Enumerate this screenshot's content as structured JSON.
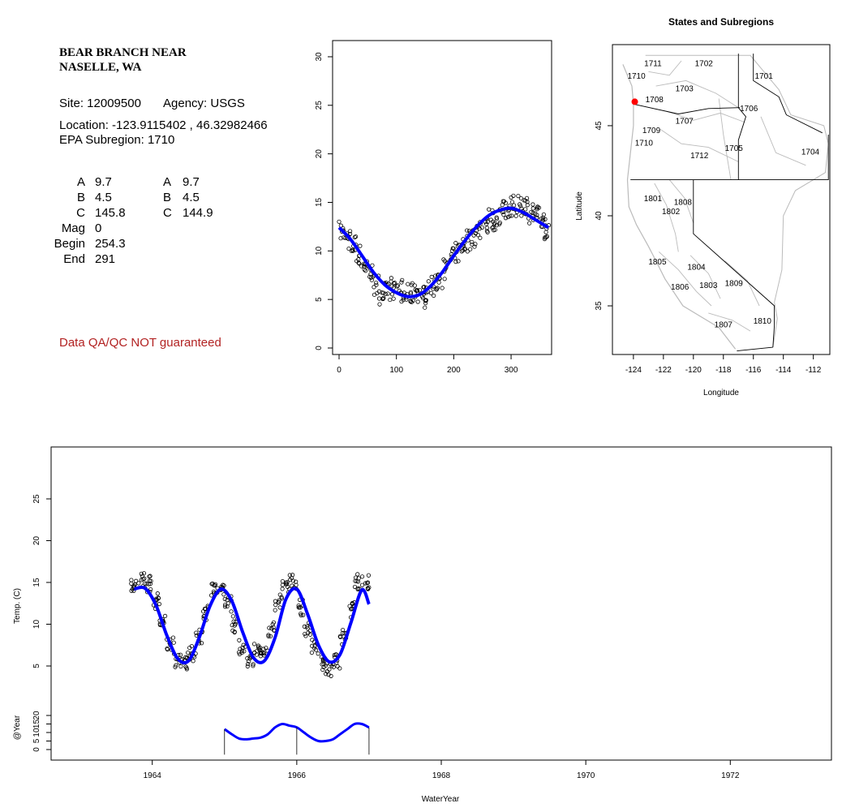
{
  "site": {
    "name_line1": "BEAR BRANCH NEAR",
    "name_line2": "NASELLE, WA",
    "site_text": "Site: 12009500",
    "agency_text": "Agency: USGS",
    "location_text": "Location: -123.9115402 , 46.32982466",
    "epa_text": "EPA Subregion: 1710",
    "qa_note": "Data QA/QC NOT guaranteed"
  },
  "params": {
    "rows": [
      {
        "label": "A",
        "v1": "9.7",
        "label2": "A",
        "v2": "9.7"
      },
      {
        "label": "B",
        "v1": "4.5",
        "label2": "B",
        "v2": "4.5"
      },
      {
        "label": "C",
        "v1": "145.8",
        "label2": "C",
        "v2": "144.9"
      },
      {
        "label": "Mag",
        "v1": "0",
        "label2": "",
        "v2": ""
      },
      {
        "label": "Begin",
        "v1": "254.3",
        "label2": "",
        "v2": ""
      },
      {
        "label": "End",
        "v1": "291",
        "label2": "",
        "v2": ""
      }
    ]
  },
  "colors": {
    "fit_line": "#0000ff",
    "points": "#000000",
    "site_marker": "#ff0000",
    "boundaries": "#bbbbbb",
    "qa_note": "#b22222"
  },
  "chart_data": [
    {
      "id": "doy",
      "type": "scatter",
      "title": "",
      "xlabel": "",
      "ylabel": "",
      "xlim": [
        0,
        365
      ],
      "ylim": [
        0,
        31
      ],
      "xticks": [
        0,
        100,
        200,
        300
      ],
      "yticks": [
        0,
        5,
        10,
        15,
        20,
        25,
        30
      ],
      "series": [
        {
          "kind": "points",
          "x": [
            5,
            15,
            25,
            35,
            45,
            55,
            65,
            75,
            85,
            95,
            105,
            115,
            125,
            135,
            145,
            155,
            165,
            175,
            185,
            195,
            205,
            215,
            225,
            235,
            245,
            255,
            265,
            275,
            285,
            295,
            305,
            315,
            325,
            335,
            345,
            355,
            362
          ],
          "y": [
            12.0,
            11.3,
            10.5,
            9.5,
            8.6,
            7.6,
            6.5,
            5.7,
            5.6,
            6.2,
            5.9,
            5.4,
            5.6,
            5.9,
            5.3,
            5.8,
            6.3,
            7.2,
            8.1,
            9.1,
            9.9,
            10.7,
            11.1,
            11.6,
            12.3,
            13.0,
            13.2,
            13.3,
            14.0,
            14.4,
            14.7,
            14.8,
            14.3,
            14.0,
            13.7,
            13.1,
            12.3
          ]
        },
        {
          "kind": "fit",
          "x": [
            0,
            20,
            40,
            60,
            80,
            100,
            120,
            140,
            160,
            180,
            200,
            220,
            240,
            260,
            280,
            300,
            320,
            340,
            365
          ],
          "y": [
            12.4,
            11.2,
            9.5,
            7.8,
            6.5,
            5.7,
            5.3,
            5.5,
            6.4,
            7.8,
            9.5,
            11.1,
            12.5,
            13.6,
            14.2,
            14.4,
            14.0,
            13.3,
            12.4
          ]
        }
      ]
    },
    {
      "id": "map",
      "type": "map",
      "title": "States and Subregions",
      "xlabel": "Longitude",
      "ylabel": "Latitude",
      "xlim": [
        -125.4,
        -110.9
      ],
      "ylim": [
        32.3,
        49.5
      ],
      "xticks": [
        -124,
        -122,
        -120,
        -118,
        -116,
        -114,
        -112
      ],
      "yticks": [
        35,
        40,
        45
      ],
      "site": {
        "lon": -123.91,
        "lat": 46.33
      },
      "labels": [
        {
          "text": "1702",
          "lon": -119.3,
          "lat": 48.3
        },
        {
          "text": "1701",
          "lon": -115.3,
          "lat": 47.6
        },
        {
          "text": "1711",
          "lon": -122.7,
          "lat": 48.3
        },
        {
          "text": "1710",
          "lon": -123.8,
          "lat": 47.6
        },
        {
          "text": "1703",
          "lon": -120.6,
          "lat": 46.9
        },
        {
          "text": "1708",
          "lon": -122.6,
          "lat": 46.3
        },
        {
          "text": "1706",
          "lon": -116.3,
          "lat": 45.8
        },
        {
          "text": "1707",
          "lon": -120.6,
          "lat": 45.1
        },
        {
          "text": "1709",
          "lon": -122.8,
          "lat": 44.6
        },
        {
          "text": "1710",
          "lon": -123.3,
          "lat": 43.9
        },
        {
          "text": "1705",
          "lon": -117.3,
          "lat": 43.6
        },
        {
          "text": "1704",
          "lon": -112.2,
          "lat": 43.4
        },
        {
          "text": "1712",
          "lon": -119.6,
          "lat": 43.2
        },
        {
          "text": "1801",
          "lon": -122.7,
          "lat": 40.8
        },
        {
          "text": "1808",
          "lon": -120.7,
          "lat": 40.6
        },
        {
          "text": "1802",
          "lon": -121.5,
          "lat": 40.1
        },
        {
          "text": "1805",
          "lon": -122.4,
          "lat": 37.3
        },
        {
          "text": "1804",
          "lon": -119.8,
          "lat": 37.0
        },
        {
          "text": "1806",
          "lon": -120.9,
          "lat": 35.9
        },
        {
          "text": "1803",
          "lon": -119.0,
          "lat": 36.0
        },
        {
          "text": "1809",
          "lon": -117.3,
          "lat": 36.1
        },
        {
          "text": "1807",
          "lon": -118.0,
          "lat": 33.8
        },
        {
          "text": "1810",
          "lon": -115.4,
          "lat": 34.0
        }
      ]
    },
    {
      "id": "timeseries",
      "type": "scatter",
      "title": "",
      "xlabel": "WaterYear",
      "ylabel": "Temp. (C)",
      "ylabel2": "@Year",
      "xlim": [
        1962.6,
        1973.4
      ],
      "ylim": [
        0,
        30
      ],
      "xticks": [
        1964,
        1966,
        1968,
        1970,
        1972
      ],
      "yticks": [
        5,
        10,
        15,
        20,
        25
      ],
      "yticks2": [
        0,
        5,
        10,
        15,
        20
      ],
      "year_marks": [
        1965,
        1966,
        1967
      ],
      "series": [
        {
          "kind": "points",
          "x": [
            1963.75,
            1963.85,
            1963.95,
            1964.05,
            1964.15,
            1964.25,
            1964.35,
            1964.45,
            1964.55,
            1964.65,
            1964.75,
            1964.85,
            1964.95,
            1965.05,
            1965.15,
            1965.25,
            1965.35,
            1965.45,
            1965.55,
            1965.65,
            1965.75,
            1965.85,
            1965.95,
            1966.05,
            1966.15,
            1966.25,
            1966.35,
            1966.45,
            1966.55,
            1966.65,
            1966.75,
            1966.85,
            1966.95
          ],
          "y": [
            14.6,
            15.3,
            14.8,
            12.8,
            10.3,
            7.5,
            5.8,
            5.6,
            6.4,
            8.7,
            11.5,
            13.9,
            14.2,
            12.5,
            10.0,
            7.2,
            5.9,
            6.8,
            6.5,
            9.5,
            12.6,
            14.8,
            15.2,
            12.0,
            9.5,
            7.4,
            5.2,
            4.6,
            5.4,
            8.5,
            11.8,
            15.1,
            14.9
          ]
        },
        {
          "kind": "fit",
          "x": [
            1963.75,
            1963.9,
            1964.05,
            1964.2,
            1964.35,
            1964.5,
            1964.65,
            1964.8,
            1964.95,
            1965.1,
            1965.25,
            1965.4,
            1965.55,
            1965.7,
            1965.85,
            1966.0,
            1966.15,
            1966.3,
            1966.45,
            1966.6,
            1966.75,
            1966.9,
            1967.0
          ],
          "y": [
            14.2,
            14.3,
            12.3,
            8.7,
            5.9,
            5.6,
            8.4,
            12.2,
            14.2,
            12.8,
            9.1,
            6.0,
            5.6,
            8.4,
            13.0,
            14.2,
            11.2,
            7.5,
            5.5,
            6.4,
            10.2,
            14.1,
            12.4
          ]
        },
        {
          "kind": "year_fit",
          "x": [
            1965.0,
            1965.1,
            1965.2,
            1965.3,
            1965.4,
            1965.5,
            1965.6,
            1965.7,
            1965.8,
            1965.9,
            1966.0,
            1966.1,
            1966.2,
            1966.3,
            1966.4,
            1966.5,
            1966.6,
            1966.7,
            1966.8,
            1966.9,
            1967.0
          ],
          "y": [
            12,
            9,
            6.5,
            6,
            6.5,
            7,
            9,
            13,
            15,
            14,
            13,
            10,
            7,
            5,
            5,
            6,
            9,
            12,
            15,
            15,
            13
          ]
        }
      ]
    }
  ]
}
